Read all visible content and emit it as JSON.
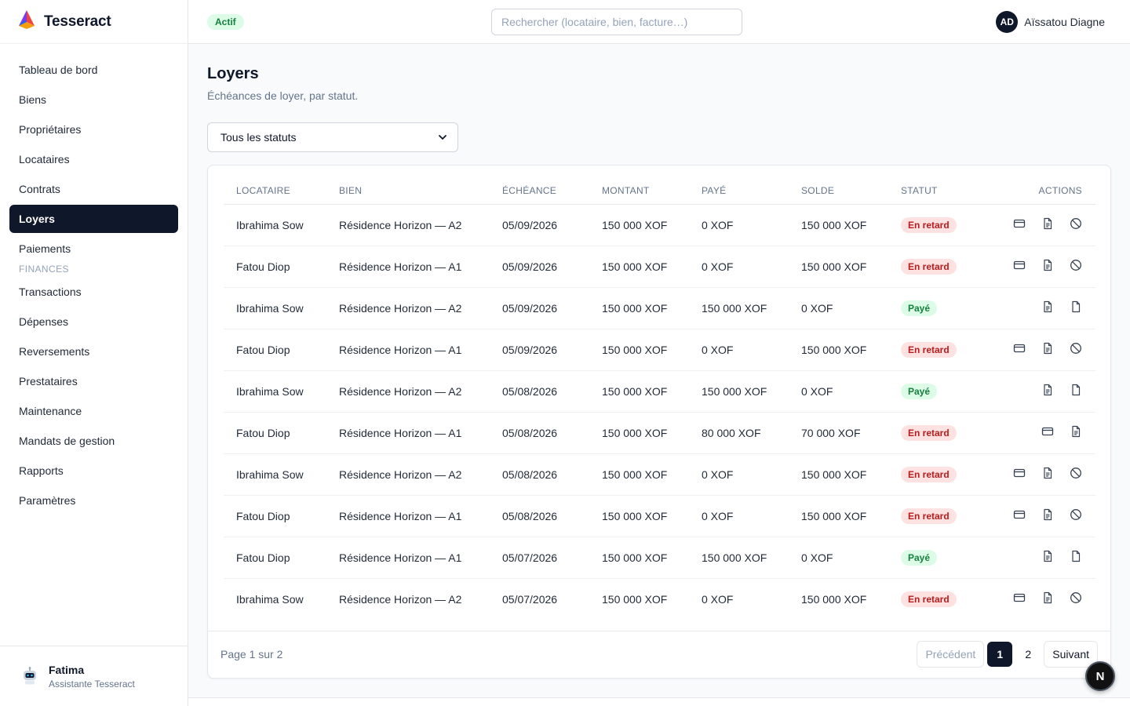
{
  "app": {
    "name": "Tesseract"
  },
  "sidebar": {
    "items": [
      {
        "label": "Tableau de bord",
        "active": false
      },
      {
        "label": "Biens",
        "active": false
      },
      {
        "label": "Propriétaires",
        "active": false
      },
      {
        "label": "Locataires",
        "active": false
      },
      {
        "label": "Contrats",
        "active": false
      },
      {
        "label": "Loyers",
        "active": true
      },
      {
        "label": "Paiements",
        "active": false
      }
    ],
    "section_label": "FINANCES",
    "finance_items": [
      {
        "label": "Transactions"
      },
      {
        "label": "Dépenses"
      },
      {
        "label": "Reversements"
      },
      {
        "label": "Prestataires"
      },
      {
        "label": "Maintenance"
      },
      {
        "label": "Mandats de gestion"
      },
      {
        "label": "Rapports"
      },
      {
        "label": "Paramètres"
      }
    ],
    "assistant": {
      "name": "Fatima",
      "role": "Assistante Tesseract"
    }
  },
  "header": {
    "status_badge": "Actif",
    "search_placeholder": "Rechercher (locataire, bien, facture…)",
    "user": {
      "initials": "AD",
      "name": "Aïssatou Diagne"
    }
  },
  "main": {
    "title": "Loyers",
    "subtitle": "Échéances de loyer, par statut.",
    "filter": {
      "selected": "Tous les statuts"
    },
    "table": {
      "columns": [
        "LOCATAIRE",
        "BIEN",
        "ÉCHÉANCE",
        "MONTANT",
        "PAYÉ",
        "SOLDE",
        "STATUT",
        "ACTIONS"
      ],
      "rows": [
        {
          "tenant": "Ibrahima Sow",
          "property": "Résidence Horizon — A2",
          "due": "05/09/2026",
          "amount": "150 000 XOF",
          "paid": "0 XOF",
          "balance": "150 000 XOF",
          "status": "En retard",
          "status_kind": "late",
          "actions": [
            "card-icon",
            "document-icon",
            "cancel-icon"
          ]
        },
        {
          "tenant": "Fatou Diop",
          "property": "Résidence Horizon — A1",
          "due": "05/09/2026",
          "amount": "150 000 XOF",
          "paid": "0 XOF",
          "balance": "150 000 XOF",
          "status": "En retard",
          "status_kind": "late",
          "actions": [
            "card-icon",
            "document-icon",
            "cancel-icon"
          ]
        },
        {
          "tenant": "Ibrahima Sow",
          "property": "Résidence Horizon — A2",
          "due": "05/09/2026",
          "amount": "150 000 XOF",
          "paid": "150 000 XOF",
          "balance": "0 XOF",
          "status": "Payé",
          "status_kind": "paid",
          "actions": [
            "document-icon",
            "receipt-icon"
          ]
        },
        {
          "tenant": "Fatou Diop",
          "property": "Résidence Horizon — A1",
          "due": "05/09/2026",
          "amount": "150 000 XOF",
          "paid": "0 XOF",
          "balance": "150 000 XOF",
          "status": "En retard",
          "status_kind": "late",
          "actions": [
            "card-icon",
            "document-icon",
            "cancel-icon"
          ]
        },
        {
          "tenant": "Ibrahima Sow",
          "property": "Résidence Horizon — A2",
          "due": "05/08/2026",
          "amount": "150 000 XOF",
          "paid": "150 000 XOF",
          "balance": "0 XOF",
          "status": "Payé",
          "status_kind": "paid",
          "actions": [
            "document-icon",
            "receipt-icon"
          ]
        },
        {
          "tenant": "Fatou Diop",
          "property": "Résidence Horizon — A1",
          "due": "05/08/2026",
          "amount": "150 000 XOF",
          "paid": "80 000 XOF",
          "balance": "70 000 XOF",
          "status": "En retard",
          "status_kind": "late",
          "actions": [
            "card-icon",
            "document-icon"
          ]
        },
        {
          "tenant": "Ibrahima Sow",
          "property": "Résidence Horizon — A2",
          "due": "05/08/2026",
          "amount": "150 000 XOF",
          "paid": "0 XOF",
          "balance": "150 000 XOF",
          "status": "En retard",
          "status_kind": "late",
          "actions": [
            "card-icon",
            "document-icon",
            "cancel-icon"
          ]
        },
        {
          "tenant": "Fatou Diop",
          "property": "Résidence Horizon — A1",
          "due": "05/08/2026",
          "amount": "150 000 XOF",
          "paid": "0 XOF",
          "balance": "150 000 XOF",
          "status": "En retard",
          "status_kind": "late",
          "actions": [
            "card-icon",
            "document-icon",
            "cancel-icon"
          ]
        },
        {
          "tenant": "Fatou Diop",
          "property": "Résidence Horizon — A1",
          "due": "05/07/2026",
          "amount": "150 000 XOF",
          "paid": "150 000 XOF",
          "balance": "0 XOF",
          "status": "Payé",
          "status_kind": "paid",
          "actions": [
            "document-icon",
            "receipt-icon"
          ]
        },
        {
          "tenant": "Ibrahima Sow",
          "property": "Résidence Horizon — A2",
          "due": "05/07/2026",
          "amount": "150 000 XOF",
          "paid": "0 XOF",
          "balance": "150 000 XOF",
          "status": "En retard",
          "status_kind": "late",
          "actions": [
            "card-icon",
            "document-icon",
            "cancel-icon"
          ]
        }
      ]
    },
    "pagination": {
      "info": "Page 1 sur 2",
      "prev": "Précédent",
      "pages": [
        "1",
        "2"
      ],
      "current": "1",
      "next": "Suivant"
    }
  },
  "fab": {
    "label": "N"
  },
  "colors": {
    "primary": "#0f172a",
    "late_bg": "#fee2e2",
    "late_fg": "#b91c1c",
    "paid_bg": "#dcfce7",
    "paid_fg": "#15803d"
  }
}
